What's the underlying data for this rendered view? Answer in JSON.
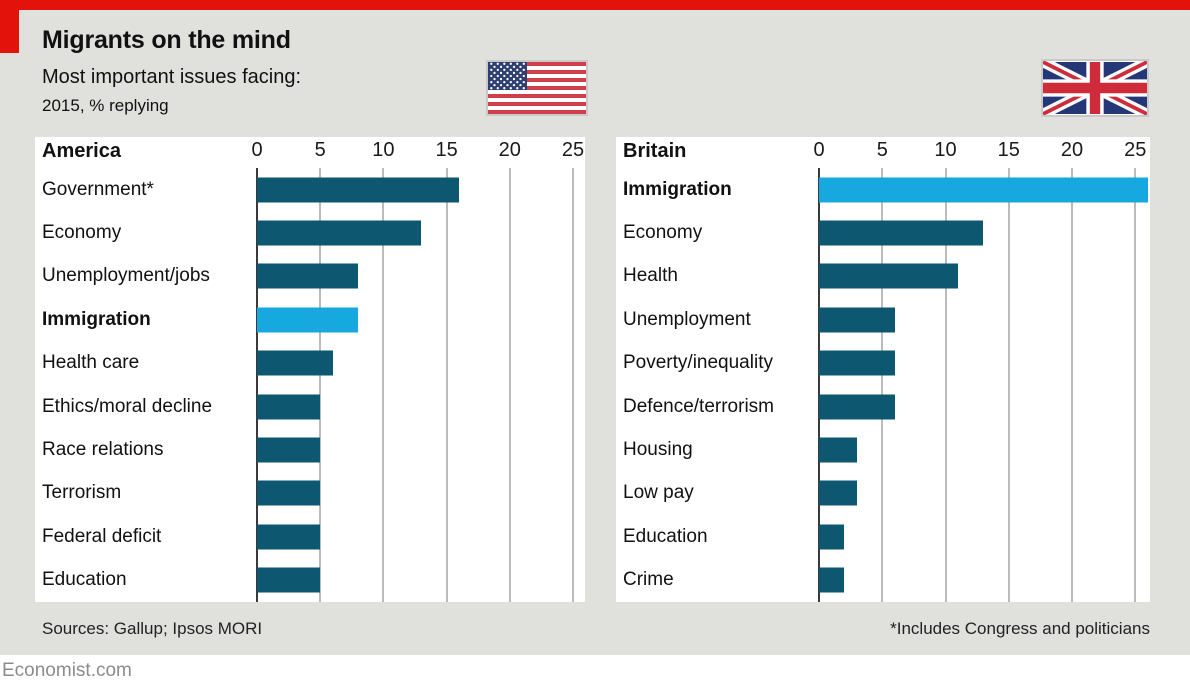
{
  "page": {
    "title": "Migrants on the mind",
    "subtitle": "Most important issues facing:",
    "unit_note": "2015, % replying",
    "sources": "Sources: Gallup; Ipsos MORI",
    "footnote": "*Includes Congress and politicians",
    "site": "Economist.com"
  },
  "colors": {
    "accent_red": "#E3120B",
    "bar_dark": "#0E5770",
    "bar_highlight": "#17A8E0",
    "page_bg": "#E0E0DD",
    "panel_bg": "#FFFFFF",
    "gridline": "#BBBBBB",
    "axis_line": "#3A3A3A"
  },
  "icons": {
    "us_flag": "us-flag",
    "uk_flag": "uk-flag"
  },
  "chart_data": [
    {
      "type": "bar",
      "orientation": "horizontal",
      "title": "America",
      "xlabel": "",
      "ylabel": "",
      "xlim": [
        0,
        25
      ],
      "ticks": [
        0,
        5,
        10,
        15,
        20,
        25
      ],
      "grid": true,
      "categories": [
        "Government*",
        "Economy",
        "Unemployment/jobs",
        "Immigration",
        "Health care",
        "Ethics/moral decline",
        "Race relations",
        "Terrorism",
        "Federal deficit",
        "Education"
      ],
      "values": [
        16,
        13,
        8,
        8,
        6,
        5,
        5,
        5,
        5,
        5
      ],
      "highlight_index": 3,
      "highlight_category": "Immigration"
    },
    {
      "type": "bar",
      "orientation": "horizontal",
      "title": "Britain",
      "xlabel": "",
      "ylabel": "",
      "xlim": [
        0,
        25
      ],
      "ticks": [
        0,
        5,
        10,
        15,
        20,
        25
      ],
      "grid": true,
      "categories": [
        "Immigration",
        "Economy",
        "Health",
        "Unemployment",
        "Poverty/inequality",
        "Defence/terrorism",
        "Housing",
        "Low pay",
        "Education",
        "Crime"
      ],
      "values": [
        26,
        13,
        11,
        6,
        6,
        6,
        3,
        3,
        2,
        2
      ],
      "highlight_index": 0,
      "highlight_category": "Immigration"
    }
  ]
}
